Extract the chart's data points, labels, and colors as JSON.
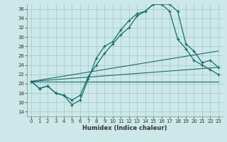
{
  "xlabel": "Humidex (Indice chaleur)",
  "ylabel": "",
  "xlim": [
    -0.5,
    23.5
  ],
  "ylim": [
    13,
    37
  ],
  "yticks": [
    14,
    16,
    18,
    20,
    22,
    24,
    26,
    28,
    30,
    32,
    34,
    36
  ],
  "xticks": [
    0,
    1,
    2,
    3,
    4,
    5,
    6,
    7,
    8,
    9,
    10,
    11,
    12,
    13,
    14,
    15,
    16,
    17,
    18,
    19,
    20,
    21,
    22,
    23
  ],
  "background_color": "#cce8e8",
  "grid_color": "#aacccc",
  "line_color": "#1a6b6b",
  "curve1_x": [
    0,
    1,
    2,
    3,
    4,
    5,
    6,
    7,
    8,
    9,
    10,
    11,
    12,
    13,
    14,
    15,
    16,
    17,
    18,
    19,
    20,
    21,
    22,
    23
  ],
  "curve1_y": [
    20.5,
    19.0,
    19.5,
    18.0,
    17.5,
    15.5,
    16.5,
    21.0,
    25.5,
    28.0,
    29.0,
    31.5,
    33.5,
    35.0,
    35.5,
    37.0,
    37.0,
    37.0,
    35.5,
    28.5,
    27.0,
    24.5,
    25.0,
    23.5
  ],
  "curve2_x": [
    0,
    1,
    2,
    3,
    4,
    5,
    6,
    7,
    8,
    9,
    10,
    11,
    12,
    13,
    14,
    15,
    16,
    17,
    18,
    19,
    20,
    21,
    22,
    23
  ],
  "curve2_y": [
    20.5,
    19.0,
    19.5,
    18.0,
    17.5,
    16.5,
    17.5,
    21.5,
    24.0,
    26.5,
    28.5,
    30.5,
    32.0,
    34.5,
    35.5,
    37.0,
    37.0,
    35.5,
    29.5,
    27.5,
    25.0,
    24.0,
    23.0,
    22.0
  ],
  "line1_x": [
    0,
    23
  ],
  "line1_y": [
    20.5,
    27.0
  ],
  "line2_x": [
    0,
    23
  ],
  "line2_y": [
    20.5,
    23.5
  ],
  "line3_x": [
    0,
    23
  ],
  "line3_y": [
    20.5,
    20.5
  ]
}
